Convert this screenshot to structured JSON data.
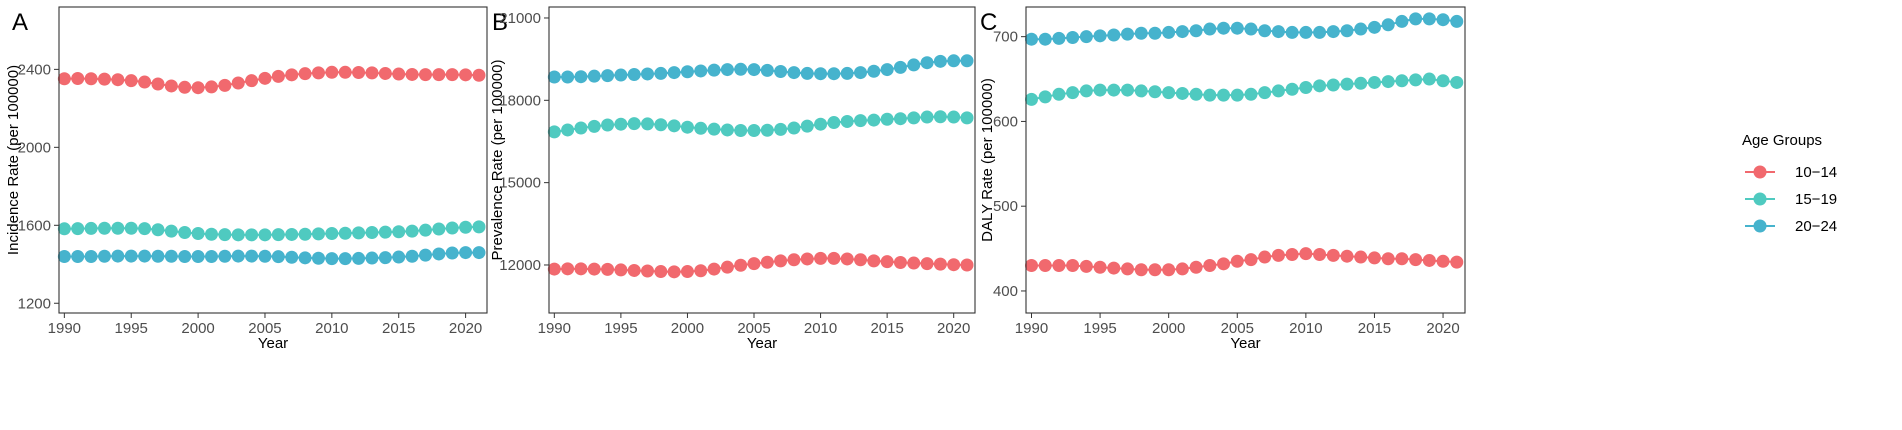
{
  "colors": {
    "10-14": "#F1696E",
    "15-19": "#4FCAC0",
    "20-24": "#46B3CD"
  },
  "legend": {
    "title": "Age Groups",
    "items": [
      {
        "label": "10−14",
        "color": "#F1696E"
      },
      {
        "label": "15−19",
        "color": "#4FCAC0"
      },
      {
        "label": "20−24",
        "color": "#46B3CD"
      }
    ]
  },
  "chart_data": [
    {
      "type": "line",
      "panel": "A",
      "xlabel": "Year",
      "ylabel": "Incidence Rate (per 100000)",
      "xlim": [
        1989.6,
        2021.6
      ],
      "ylim": [
        1150,
        2720
      ],
      "xticks": [
        1990,
        1995,
        2000,
        2005,
        2010,
        2015,
        2020
      ],
      "yticks": [
        1200,
        1600,
        2000,
        2400
      ],
      "grid": false,
      "x": [
        1990,
        1991,
        1992,
        1993,
        1994,
        1995,
        1996,
        1997,
        1998,
        1999,
        2000,
        2001,
        2002,
        2003,
        2004,
        2005,
        2006,
        2007,
        2008,
        2009,
        2010,
        2011,
        2012,
        2013,
        2014,
        2015,
        2016,
        2017,
        2018,
        2019,
        2020,
        2021
      ],
      "series": [
        {
          "name": "10−14",
          "values": [
            2352,
            2353,
            2352,
            2350,
            2347,
            2342,
            2335,
            2325,
            2315,
            2308,
            2306,
            2310,
            2318,
            2330,
            2342,
            2354,
            2364,
            2372,
            2378,
            2382,
            2385,
            2385,
            2384,
            2382,
            2379,
            2376,
            2374,
            2373,
            2373,
            2373,
            2372,
            2370
          ]
        },
        {
          "name": "15−19",
          "values": [
            1582,
            1583,
            1584,
            1585,
            1585,
            1585,
            1583,
            1577,
            1570,
            1563,
            1558,
            1554,
            1552,
            1551,
            1551,
            1551,
            1552,
            1553,
            1554,
            1556,
            1558,
            1559,
            1561,
            1563,
            1565,
            1567,
            1570,
            1575,
            1581,
            1586,
            1590,
            1592
          ]
        },
        {
          "name": "20−24",
          "values": [
            1440,
            1440,
            1440,
            1441,
            1442,
            1442,
            1442,
            1441,
            1441,
            1440,
            1440,
            1440,
            1441,
            1442,
            1442,
            1441,
            1439,
            1436,
            1433,
            1431,
            1429,
            1429,
            1430,
            1432,
            1434,
            1437,
            1441,
            1447,
            1453,
            1458,
            1460,
            1460
          ]
        }
      ]
    },
    {
      "type": "line",
      "panel": "B",
      "xlabel": "Year",
      "ylabel": "Prevalence Rate (per 100000)",
      "xlim": [
        1989.6,
        2021.6
      ],
      "ylim": [
        10250,
        21400
      ],
      "xticks": [
        1990,
        1995,
        2000,
        2005,
        2010,
        2015,
        2020
      ],
      "yticks": [
        12000,
        15000,
        18000,
        21000
      ],
      "grid": false,
      "x": [
        1990,
        1991,
        1992,
        1993,
        1994,
        1995,
        1996,
        1997,
        1998,
        1999,
        2000,
        2001,
        2002,
        2003,
        2004,
        2005,
        2006,
        2007,
        2008,
        2009,
        2010,
        2011,
        2012,
        2013,
        2014,
        2015,
        2016,
        2017,
        2018,
        2019,
        2020,
        2021
      ],
      "series": [
        {
          "name": "10−14",
          "values": [
            11850,
            11860,
            11860,
            11850,
            11840,
            11820,
            11800,
            11780,
            11760,
            11750,
            11760,
            11790,
            11850,
            11920,
            11990,
            12050,
            12100,
            12150,
            12190,
            12220,
            12240,
            12240,
            12220,
            12190,
            12150,
            12120,
            12090,
            12070,
            12050,
            12030,
            12010,
            12000
          ]
        },
        {
          "name": "15−19",
          "values": [
            16850,
            16920,
            16990,
            17050,
            17100,
            17130,
            17150,
            17140,
            17110,
            17070,
            17020,
            16980,
            16950,
            16920,
            16900,
            16900,
            16910,
            16940,
            16990,
            17060,
            17130,
            17190,
            17230,
            17260,
            17280,
            17310,
            17330,
            17360,
            17390,
            17400,
            17390,
            17360
          ]
        },
        {
          "name": "20−24",
          "values": [
            18850,
            18850,
            18860,
            18880,
            18900,
            18920,
            18940,
            18960,
            18980,
            19010,
            19040,
            19070,
            19100,
            19120,
            19130,
            19120,
            19090,
            19050,
            19010,
            18980,
            18970,
            18970,
            18980,
            19010,
            19060,
            19120,
            19200,
            19290,
            19370,
            19420,
            19440,
            19440
          ]
        }
      ]
    },
    {
      "type": "line",
      "panel": "C",
      "xlabel": "Year",
      "ylabel": "DALY Rate (per 100000)",
      "xlim": [
        1989.6,
        2021.6
      ],
      "ylim": [
        374,
        735
      ],
      "xticks": [
        1990,
        1995,
        2000,
        2005,
        2010,
        2015,
        2020
      ],
      "yticks": [
        400,
        500,
        600,
        700
      ],
      "grid": false,
      "x": [
        1990,
        1991,
        1992,
        1993,
        1994,
        1995,
        1996,
        1997,
        1998,
        1999,
        2000,
        2001,
        2002,
        2003,
        2004,
        2005,
        2006,
        2007,
        2008,
        2009,
        2010,
        2011,
        2012,
        2013,
        2014,
        2015,
        2016,
        2017,
        2018,
        2019,
        2020,
        2021
      ],
      "series": [
        {
          "name": "10−14",
          "values": [
            430,
            430,
            430,
            430,
            429,
            428,
            427,
            426,
            425,
            425,
            425,
            426,
            428,
            430,
            432,
            435,
            437,
            440,
            442,
            443,
            444,
            443,
            442,
            441,
            440,
            439,
            438,
            438,
            437,
            436,
            435,
            434
          ]
        },
        {
          "name": "15−19",
          "values": [
            626,
            629,
            632,
            634,
            636,
            637,
            637,
            637,
            636,
            635,
            634,
            633,
            632,
            631,
            631,
            631,
            632,
            634,
            636,
            638,
            640,
            642,
            643,
            644,
            645,
            646,
            647,
            648,
            649,
            650,
            648,
            646
          ]
        },
        {
          "name": "20−24",
          "values": [
            697,
            697,
            698,
            699,
            700,
            701,
            702,
            703,
            704,
            704,
            705,
            706,
            707,
            709,
            710,
            710,
            709,
            707,
            706,
            705,
            705,
            705,
            706,
            707,
            709,
            711,
            714,
            718,
            721,
            721,
            720,
            718
          ]
        }
      ]
    }
  ]
}
